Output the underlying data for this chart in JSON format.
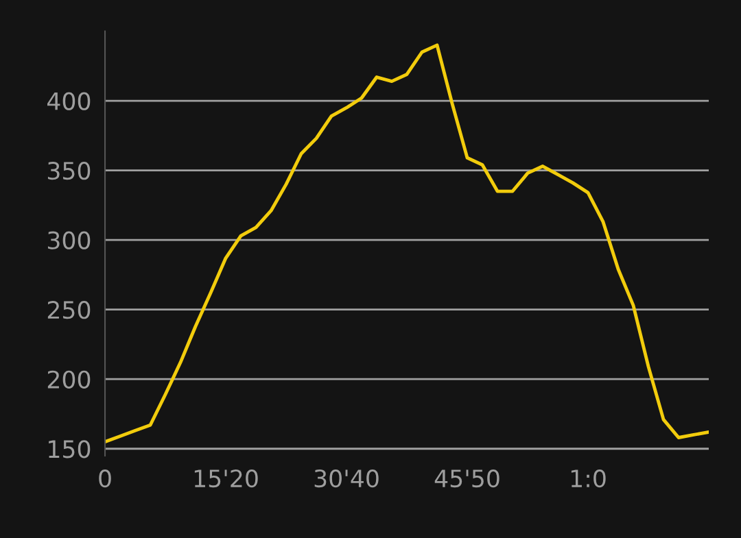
{
  "chart_data": {
    "type": "line",
    "categories": [
      "0",
      null,
      null,
      null,
      null,
      null,
      null,
      null,
      "15'20",
      null,
      null,
      null,
      null,
      null,
      null,
      null,
      "30'40",
      null,
      null,
      null,
      null,
      null,
      null,
      null,
      "45'50",
      null,
      null,
      null,
      null,
      null,
      null,
      null,
      "1:0",
      null,
      null,
      null,
      null,
      null,
      null,
      null,
      null
    ],
    "series": [
      {
        "color": "#f2cc0c",
        "values": [
          155,
          159,
          163,
          167,
          189,
          212,
          238,
          262,
          287,
          303,
          309,
          321,
          340,
          362,
          373,
          389,
          395,
          402,
          417,
          414,
          419,
          435,
          440,
          398,
          359,
          354,
          335,
          335,
          348,
          353,
          347,
          341,
          334,
          313,
          279,
          253,
          209,
          171,
          158,
          160,
          162
        ]
      }
    ],
    "ylim": [
      145,
      450
    ],
    "yticks": [
      150,
      200,
      250,
      300,
      350,
      400
    ],
    "grid": "y",
    "marker": "none",
    "line_style": "solid",
    "legend": false
  }
}
